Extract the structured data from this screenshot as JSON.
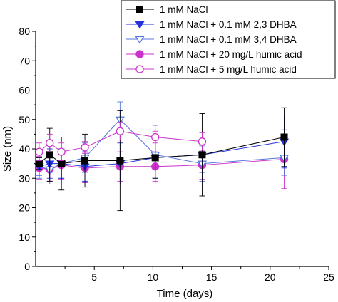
{
  "chart_data": {
    "type": "scatter",
    "xlabel": "Time (days)",
    "ylabel": "Size (nm)",
    "xlim": [
      0,
      25
    ],
    "ylim": [
      0,
      80
    ],
    "xticks": [
      5,
      10,
      15,
      20,
      25
    ],
    "yticks": [
      0,
      10,
      20,
      30,
      40,
      50,
      60,
      70,
      80
    ],
    "grid": false,
    "legend_position": "top-right",
    "series": [
      {
        "name": "1 mM NaCl",
        "color": "#000000",
        "marker": "square-filled",
        "x": [
          0.3,
          1.2,
          2.2,
          4.2,
          7.2,
          10.2,
          14.2,
          21.2
        ],
        "y": [
          35,
          38,
          35,
          36,
          36,
          37,
          38,
          44
        ],
        "err": [
          2,
          9,
          9,
          9,
          17,
          7,
          14,
          10
        ]
      },
      {
        "name": "1 mM NaCl + 0.1 mM 2,3 DHBA",
        "color": "#2233dd",
        "marker": "triangle-down-filled",
        "x": [
          0.3,
          1.2,
          2.2,
          4.2,
          7.2,
          10.2,
          14.2,
          21.2
        ],
        "y": [
          34,
          35,
          35,
          34,
          35,
          37,
          38,
          42.5
        ],
        "err": [
          3,
          5,
          5,
          5,
          7,
          7,
          6,
          9
        ]
      },
      {
        "name": "1 mM NaCl + 0.1 mM 3,4 DHBA",
        "color": "#5577dd",
        "marker": "triangle-down-open",
        "x": [
          0.3,
          1.2,
          2.2,
          4.2,
          7.2,
          10.2,
          14.2,
          21.2
        ],
        "y": [
          34,
          33,
          35,
          37,
          50,
          38,
          35,
          37
        ],
        "err": [
          4,
          5,
          5,
          5,
          6,
          10,
          6,
          6
        ]
      },
      {
        "name": "1 mM NaCl + 20 mg/L humic acid",
        "color": "#cc33cc",
        "marker": "circle-filled",
        "x": [
          0.3,
          1.2,
          2.2,
          4.2,
          7.2,
          10.2,
          14.2,
          21.2
        ],
        "y": [
          33.5,
          33,
          34.5,
          33.5,
          34,
          34,
          34.5,
          36.5
        ],
        "err": [
          4,
          4,
          5,
          5,
          5,
          5,
          5,
          10
        ]
      },
      {
        "name": "1 mM NaCl + 5 mg/L humic acid",
        "color": "#cc33cc",
        "marker": "circle-open",
        "x": [
          0.3,
          1.2,
          2.2,
          4.2,
          7.2,
          10.2,
          14.2
        ],
        "y": [
          39,
          42,
          39,
          40.5,
          46,
          44,
          42.5
        ],
        "err": [
          3,
          3,
          3,
          2,
          3,
          2,
          3
        ]
      }
    ]
  }
}
